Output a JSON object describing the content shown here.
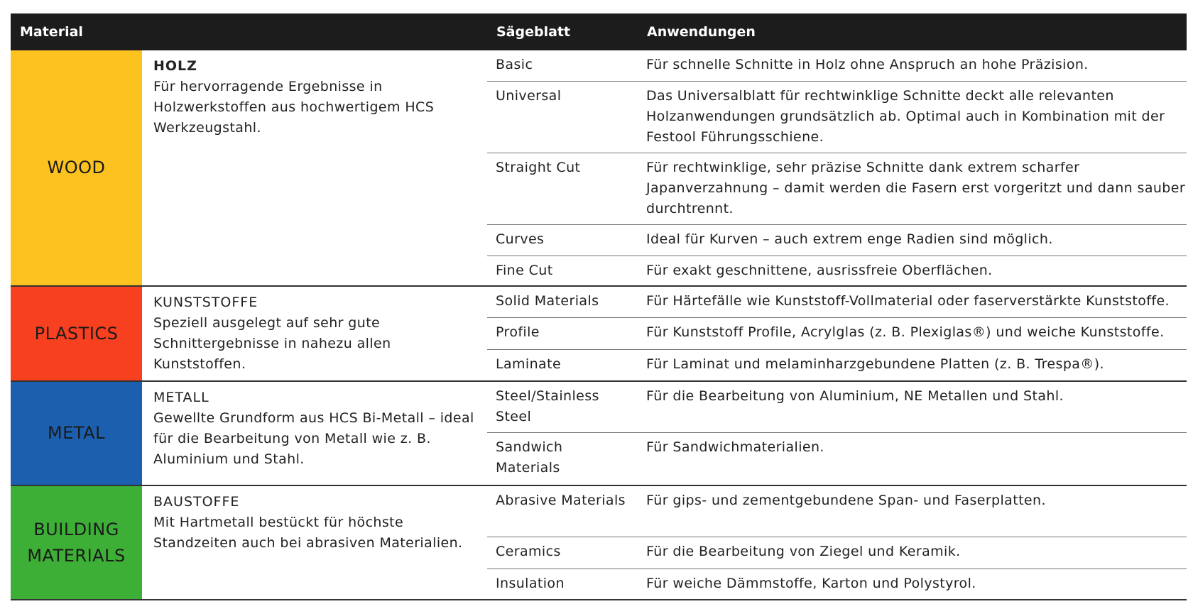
{
  "header": {
    "material": "Material",
    "blade": "Sägeblatt",
    "applications": "Anwendungen"
  },
  "sections": [
    {
      "label": "WOOD",
      "title": "HOLZ",
      "description": "Für hervorragende Ergebnisse in Holzwerkstoffen aus hochwertigem HCS Werkzeugstahl.",
      "rows": [
        {
          "blade": "Basic",
          "application": "Für schnelle Schnitte in Holz ohne Anspruch an hohe Präzision."
        },
        {
          "blade": "Universal",
          "application": "Das Universalblatt für rechtwinklige Schnitte deckt alle relevanten Holzanwendungen grundsätzlich ab. Optimal auch in Kombination mit der Festool Führungsschiene."
        },
        {
          "blade": "Straight Cut",
          "application": "Für rechtwinklige, sehr präzise Schnitte dank extrem scharfer Japanverzahnung – damit werden die Fasern erst vorgeritzt und dann sauber durchtrennt."
        },
        {
          "blade": "Curves",
          "application": "Ideal für Kurven – auch extrem enge Radien sind möglich."
        },
        {
          "blade": "Fine Cut",
          "application": "Für exakt geschnittene, ausrissfreie Oberflächen."
        }
      ]
    },
    {
      "label": "PLASTICS",
      "title": "KUNSTSTOFFE",
      "description": "Speziell ausgelegt auf sehr gute Schnittergebnisse in nahezu allen Kunststoffen.",
      "rows": [
        {
          "blade": "Solid Materials",
          "application": "Für Härtefälle wie Kunststoff-Vollmaterial oder faserverstärkte Kunststoffe."
        },
        {
          "blade": "Profile",
          "application": "Für Kunststoff Profile, Acrylglas (z. B. Plexiglas®) und weiche Kunststoffe."
        },
        {
          "blade": "Laminate",
          "application": "Für Laminat und melaminharzgebundene Platten (z. B. Trespa®)."
        }
      ]
    },
    {
      "label": "METAL",
      "title": "METALL",
      "description": "Gewellte Grundform aus HCS Bi-Metall – ideal für die Bearbeitung von Metall wie z. B. Aluminium und Stahl.",
      "rows": [
        {
          "blade": "Steel/Stainless Steel",
          "application": "Für die Bearbeitung von Aluminium, NE Metallen und Stahl."
        },
        {
          "blade": "Sandwich Materials",
          "application": "Für Sandwichmaterialien."
        }
      ]
    },
    {
      "label": "BUILDING MATERIALS",
      "title": "BAUSTOFFE",
      "description": "Mit Hartmetall bestückt für höchste Standzeiten auch bei abrasiven Materialien.",
      "rows": [
        {
          "blade": "Abrasive Materials",
          "application": "Für gips- und zementgebundene Span- und Faserplatten."
        },
        {
          "blade": "Ceramics",
          "application": "Für die Bearbeitung von Ziegel und Keramik."
        },
        {
          "blade": "Insulation",
          "application": "Für weiche Dämmstoffe, Karton und Polystyrol."
        }
      ]
    }
  ]
}
